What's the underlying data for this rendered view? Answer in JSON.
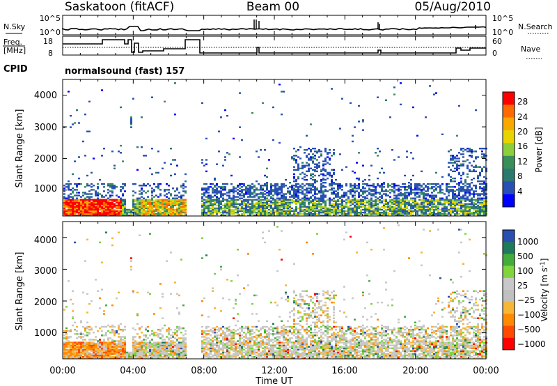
{
  "header": {
    "station": "Saskatoon (fitACF)",
    "beam": "Beam 00",
    "date": "05/Aug/2010"
  },
  "noise_panel": {
    "left_label": "N.Sky",
    "right_label": "N.Search",
    "left_ticks": [
      "10^5",
      "10^0"
    ],
    "right_ticks": [
      "10^5",
      "10^0"
    ]
  },
  "freq_panel": {
    "left_label_1": "Freq.",
    "left_label_2": "[MHz]",
    "right_label": "Nave",
    "left_ticks": [
      "18",
      "8"
    ],
    "right_ticks": [
      "60",
      "0"
    ]
  },
  "cpid": {
    "label": "CPID",
    "value": "normalsound (fast) 157"
  },
  "chart_data": [
    {
      "type": "heatmap",
      "quantity": "Power",
      "ylabel": "Slant Range [km]",
      "y_ticks": [
        "1000",
        "2000",
        "3000",
        "4000"
      ],
      "ylim": [
        180,
        4500
      ],
      "colorbar_label": "Power [dB]",
      "colorbar_ticks": [
        "28",
        "24",
        "20",
        "16",
        "12",
        "8",
        "4"
      ],
      "colors": [
        "#ff0000",
        "#ff6a00",
        "#f9a800",
        "#e8d400",
        "#8ccf3a",
        "#3a8e5a",
        "#2a7a6e",
        "#2850b4",
        "#0000ff"
      ]
    },
    {
      "type": "heatmap",
      "quantity": "Velocity",
      "ylabel": "Slant Range [km]",
      "y_ticks": [
        "1000",
        "2000",
        "3000",
        "4000"
      ],
      "ylim": [
        180,
        4500
      ],
      "colorbar_label": "Velocity [m s^-1]",
      "colorbar_ticks": [
        "1000",
        "500",
        "100",
        "25",
        "−25",
        "−100",
        "−500",
        "−1000"
      ],
      "colors": [
        "#2a4fb0",
        "#1e7a5a",
        "#43ad3c",
        "#80d43c",
        "#c8c8c8",
        "#c0c0c0",
        "#f6b636",
        "#ff8a00",
        "#ff4a00",
        "#ff0000"
      ]
    }
  ],
  "time_axis": {
    "label": "Time UT",
    "ticks": [
      "00:00",
      "04:00",
      "08:00",
      "12:00",
      "16:00",
      "20:00",
      "00:00"
    ]
  }
}
